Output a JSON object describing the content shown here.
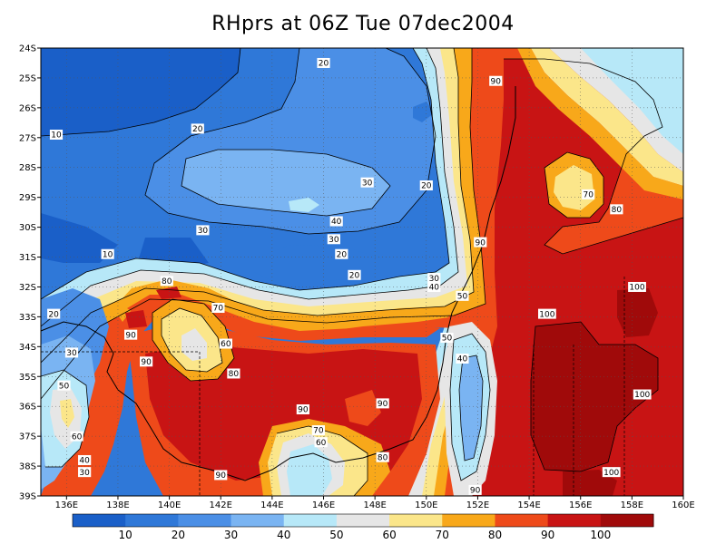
{
  "title": "RHprs at 06Z Tue 07dec2004",
  "map": {
    "lat_labels": [
      "24S",
      "25S",
      "26S",
      "27S",
      "28S",
      "29S",
      "30S",
      "31S",
      "32S",
      "33S",
      "34S",
      "35S",
      "36S",
      "37S",
      "38S",
      "39S"
    ],
    "lon_labels": [
      "136E",
      "138E",
      "140E",
      "142E",
      "144E",
      "146E",
      "148E",
      "150E",
      "152E",
      "154E",
      "156E",
      "158E",
      "160E"
    ],
    "contour_labels": [
      {
        "text": "20",
        "lon": 146,
        "lat": -24.5
      },
      {
        "text": "90",
        "lon": 152.7,
        "lat": -25.1
      },
      {
        "text": "10",
        "lon": 135.6,
        "lat": -26.9
      },
      {
        "text": "20",
        "lon": 141.1,
        "lat": -26.7
      },
      {
        "text": "70",
        "lon": 156.3,
        "lat": -28.9
      },
      {
        "text": "30",
        "lon": 147.7,
        "lat": -28.5
      },
      {
        "text": "20",
        "lon": 150,
        "lat": -28.6
      },
      {
        "text": "80",
        "lon": 157.4,
        "lat": -29.4
      },
      {
        "text": "40",
        "lon": 146.5,
        "lat": -29.8
      },
      {
        "text": "30",
        "lon": 141.3,
        "lat": -30.1
      },
      {
        "text": "30",
        "lon": 146.4,
        "lat": -30.4
      },
      {
        "text": "90",
        "lon": 152.1,
        "lat": -30.5
      },
      {
        "text": "10",
        "lon": 137.6,
        "lat": -30.9
      },
      {
        "text": "20",
        "lon": 146.7,
        "lat": -30.9
      },
      {
        "text": "20",
        "lon": 147.2,
        "lat": -31.6
      },
      {
        "text": "30",
        "lon": 150.3,
        "lat": -31.7
      },
      {
        "text": "40",
        "lon": 150.3,
        "lat": -32.0
      },
      {
        "text": "50",
        "lon": 151.4,
        "lat": -32.3
      },
      {
        "text": "80",
        "lon": 139.9,
        "lat": -31.8
      },
      {
        "text": "100",
        "lon": 158.2,
        "lat": -32.0
      },
      {
        "text": "70",
        "lon": 141.9,
        "lat": -32.7
      },
      {
        "text": "20",
        "lon": 135.5,
        "lat": -32.9
      },
      {
        "text": "100",
        "lon": 154.7,
        "lat": -32.9
      },
      {
        "text": "90",
        "lon": 138.5,
        "lat": -33.6
      },
      {
        "text": "60",
        "lon": 142.2,
        "lat": -33.9
      },
      {
        "text": "30",
        "lon": 136.2,
        "lat": -34.2
      },
      {
        "text": "90",
        "lon": 139.1,
        "lat": -34.5
      },
      {
        "text": "50",
        "lon": 150.8,
        "lat": -33.7
      },
      {
        "text": "40",
        "lon": 151.4,
        "lat": -34.4
      },
      {
        "text": "80",
        "lon": 142.5,
        "lat": -34.9
      },
      {
        "text": "50",
        "lon": 135.9,
        "lat": -35.3
      },
      {
        "text": "90",
        "lon": 145.2,
        "lat": -36.1
      },
      {
        "text": "90",
        "lon": 148.3,
        "lat": -35.9
      },
      {
        "text": "100",
        "lon": 158.4,
        "lat": -35.6
      },
      {
        "text": "70",
        "lon": 145.8,
        "lat": -36.8
      },
      {
        "text": "60",
        "lon": 145.9,
        "lat": -37.2
      },
      {
        "text": "60",
        "lon": 136.4,
        "lat": -37.0
      },
      {
        "text": "40",
        "lon": 136.7,
        "lat": -37.8
      },
      {
        "text": "80",
        "lon": 148.3,
        "lat": -37.7
      },
      {
        "text": "30",
        "lon": 136.7,
        "lat": -38.2
      },
      {
        "text": "90",
        "lon": 142,
        "lat": -38.3
      },
      {
        "text": "100",
        "lon": 157.2,
        "lat": -38.2
      },
      {
        "text": "90",
        "lon": 151.9,
        "lat": -38.8
      }
    ]
  },
  "colorbar": {
    "labels": [
      "10",
      "20",
      "30",
      "40",
      "50",
      "60",
      "70",
      "80",
      "90",
      "100"
    ],
    "colors": [
      "#1a5fc8",
      "#2f78d8",
      "#4b8fe6",
      "#7ab4f2",
      "#b7e8f8",
      "#e6e6e6",
      "#fbe68a",
      "#f8a81a",
      "#ee4a1a",
      "#c81414",
      "#a00a0a"
    ]
  },
  "colors": {
    "c10": "#1a5fc8",
    "c20": "#2f78d8",
    "c30": "#4b8fe6",
    "c40": "#7ab4f2",
    "c50": "#b7e8f8",
    "c60": "#e6e6e6",
    "c70": "#fbe68a",
    "c80": "#f8a81a",
    "c90": "#ee4a1a",
    "c100": "#c81414",
    "c110": "#a00a0a"
  }
}
